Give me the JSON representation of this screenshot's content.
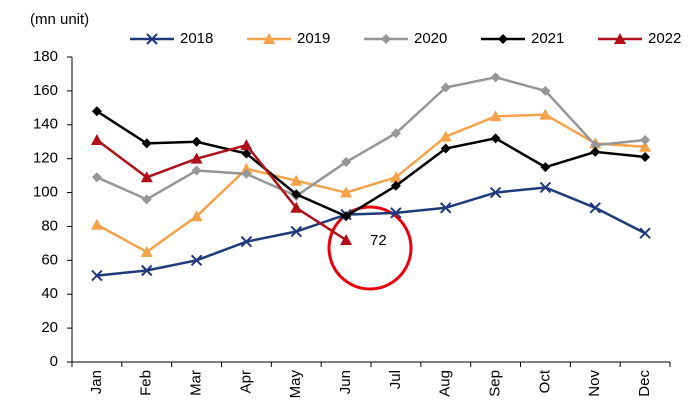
{
  "chart_data": {
    "type": "line",
    "y_label": "(mn unit)",
    "categories": [
      "Jan",
      "Feb",
      "Mar",
      "Apr",
      "May",
      "Jun",
      "Jul",
      "Aug",
      "Sep",
      "Oct",
      "Nov",
      "Dec"
    ],
    "series": [
      {
        "name": "2018",
        "color": "#1f3a7a",
        "marker": "x",
        "values": [
          51,
          54,
          60,
          71,
          77,
          87,
          88,
          91,
          100,
          103,
          91,
          76
        ]
      },
      {
        "name": "2019",
        "color": "#f5a34a",
        "marker": "triangle",
        "values": [
          81,
          65,
          86,
          114,
          107,
          100,
          109,
          133,
          145,
          146,
          129,
          127
        ]
      },
      {
        "name": "2020",
        "color": "#969696",
        "marker": "diamond",
        "values": [
          109,
          96,
          113,
          111,
          98,
          118,
          135,
          162,
          168,
          160,
          128,
          131
        ]
      },
      {
        "name": "2021",
        "color": "#000000",
        "marker": "diamond",
        "values": [
          148,
          129,
          130,
          123,
          99,
          86,
          104,
          126,
          132,
          115,
          124,
          121
        ]
      },
      {
        "name": "2022",
        "color": "#b0101a",
        "marker": "triangle",
        "values": [
          131,
          109,
          120,
          128,
          91,
          72,
          null,
          null,
          null,
          null,
          null,
          null
        ]
      }
    ],
    "ylim": [
      0,
      180
    ],
    "yticks": [
      0,
      20,
      40,
      60,
      80,
      100,
      120,
      140,
      160,
      180
    ],
    "grid": false,
    "legend": "top"
  }
}
